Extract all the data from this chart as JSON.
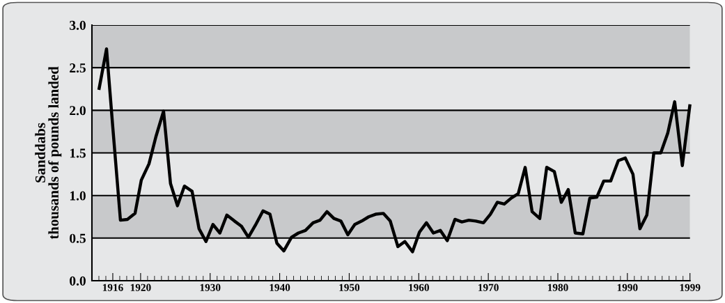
{
  "chart_data": {
    "type": "line",
    "ylabel": "Sanddabs\nthousands of pounds landed",
    "x": [
      1914.0,
      1915.1,
      1916.0,
      1917.1,
      1918.1,
      1919.2,
      1920.1,
      1921.2,
      1922.2,
      1923.3,
      1924.3,
      1925.3,
      1926.3,
      1927.4,
      1928.4,
      1929.4,
      1930.4,
      1931.4,
      1932.4,
      1933.5,
      1934.5,
      1935.5,
      1936.5,
      1937.6,
      1938.6,
      1939.6,
      1940.6,
      1941.7,
      1942.7,
      1943.7,
      1944.8,
      1945.8,
      1946.8,
      1947.8,
      1948.8,
      1949.8,
      1950.8,
      1951.8,
      1952.8,
      1953.8,
      1954.9,
      1955.9,
      1957.0,
      1958.0,
      1959.1,
      1960.1,
      1961.1,
      1962.1,
      1963.1,
      1964.1,
      1965.2,
      1966.2,
      1967.2,
      1968.2,
      1969.3,
      1970.3,
      1971.3,
      1972.3,
      1973.3,
      1974.3,
      1975.3,
      1976.3,
      1977.4,
      1978.4,
      1979.5,
      1980.5,
      1981.5,
      1982.5,
      1983.6,
      1984.6,
      1985.6,
      1986.6,
      1987.6,
      1988.7,
      1989.7,
      1990.8,
      1991.8,
      1992.8,
      1993.8,
      1994.8,
      1995.8,
      1996.8,
      1997.9,
      1999.0
    ],
    "series": [
      {
        "color": "#000000",
        "values": [
          2.24,
          2.72,
          1.8,
          0.71,
          0.72,
          0.79,
          1.18,
          1.37,
          1.69,
          1.99,
          1.14,
          0.88,
          1.11,
          1.05,
          0.61,
          0.46,
          0.66,
          0.56,
          0.77,
          0.7,
          0.64,
          0.51,
          0.65,
          0.82,
          0.78,
          0.44,
          0.35,
          0.51,
          0.56,
          0.59,
          0.68,
          0.71,
          0.81,
          0.73,
          0.7,
          0.54,
          0.66,
          0.7,
          0.75,
          0.78,
          0.79,
          0.7,
          0.4,
          0.46,
          0.34,
          0.57,
          0.68,
          0.56,
          0.59,
          0.47,
          0.72,
          0.69,
          0.71,
          0.7,
          0.68,
          0.78,
          0.92,
          0.9,
          0.97,
          1.02,
          1.33,
          0.81,
          0.73,
          1.33,
          1.28,
          0.92,
          1.07,
          0.56,
          0.55,
          0.97,
          0.98,
          1.17,
          1.17,
          1.41,
          1.44,
          1.25,
          0.61,
          0.77,
          1.5,
          1.5,
          1.73,
          2.1,
          1.35,
          2.07
        ]
      }
    ],
    "xlim": [
      1913,
      1999
    ],
    "xticks": [
      {
        "value": 1914,
        "label": null
      },
      {
        "value": 1915,
        "label": null
      },
      1916,
      {
        "value": 1917,
        "label": null
      },
      {
        "value": 1918,
        "label": null
      },
      {
        "value": 1919,
        "label": null
      },
      1920,
      {
        "value": 1921,
        "label": null
      },
      {
        "value": 1922,
        "label": null
      },
      {
        "value": 1923,
        "label": null
      },
      {
        "value": 1924,
        "label": null
      },
      {
        "value": 1925,
        "label": null
      },
      {
        "value": 1926,
        "label": null
      },
      {
        "value": 1927,
        "label": null
      },
      {
        "value": 1928,
        "label": null
      },
      {
        "value": 1929,
        "label": null
      },
      1930,
      {
        "value": 1931,
        "label": null
      },
      {
        "value": 1932,
        "label": null
      },
      {
        "value": 1933,
        "label": null
      },
      {
        "value": 1934,
        "label": null
      },
      {
        "value": 1935,
        "label": null
      },
      {
        "value": 1936,
        "label": null
      },
      {
        "value": 1937,
        "label": null
      },
      {
        "value": 1938,
        "label": null
      },
      {
        "value": 1939,
        "label": null
      },
      1940,
      {
        "value": 1941,
        "label": null
      },
      {
        "value": 1942,
        "label": null
      },
      {
        "value": 1943,
        "label": null
      },
      {
        "value": 1944,
        "label": null
      },
      {
        "value": 1945,
        "label": null
      },
      {
        "value": 1946,
        "label": null
      },
      {
        "value": 1947,
        "label": null
      },
      {
        "value": 1948,
        "label": null
      },
      {
        "value": 1949,
        "label": null
      },
      1950,
      {
        "value": 1951,
        "label": null
      },
      {
        "value": 1952,
        "label": null
      },
      {
        "value": 1953,
        "label": null
      },
      {
        "value": 1954,
        "label": null
      },
      {
        "value": 1955,
        "label": null
      },
      {
        "value": 1956,
        "label": null
      },
      {
        "value": 1957,
        "label": null
      },
      {
        "value": 1958,
        "label": null
      },
      {
        "value": 1959,
        "label": null
      },
      1960,
      {
        "value": 1961,
        "label": null
      },
      {
        "value": 1962,
        "label": null
      },
      {
        "value": 1963,
        "label": null
      },
      {
        "value": 1964,
        "label": null
      },
      {
        "value": 1965,
        "label": null
      },
      {
        "value": 1966,
        "label": null
      },
      {
        "value": 1967,
        "label": null
      },
      {
        "value": 1968,
        "label": null
      },
      {
        "value": 1969,
        "label": null
      },
      1970,
      {
        "value": 1971,
        "label": null
      },
      {
        "value": 1972,
        "label": null
      },
      {
        "value": 1973,
        "label": null
      },
      {
        "value": 1974,
        "label": null
      },
      {
        "value": 1975,
        "label": null
      },
      {
        "value": 1976,
        "label": null
      },
      {
        "value": 1977,
        "label": null
      },
      {
        "value": 1978,
        "label": null
      },
      {
        "value": 1979,
        "label": null
      },
      1980,
      {
        "value": 1981,
        "label": null
      },
      {
        "value": 1982,
        "label": null
      },
      {
        "value": 1983,
        "label": null
      },
      {
        "value": 1984,
        "label": null
      },
      {
        "value": 1985,
        "label": null
      },
      {
        "value": 1986,
        "label": null
      },
      {
        "value": 1987,
        "label": null
      },
      {
        "value": 1988,
        "label": null
      },
      {
        "value": 1989,
        "label": null
      },
      1990,
      {
        "value": 1991,
        "label": null
      },
      {
        "value": 1992,
        "label": null
      },
      {
        "value": 1993,
        "label": null
      },
      {
        "value": 1994,
        "label": null
      },
      {
        "value": 1995,
        "label": null
      },
      {
        "value": 1996,
        "label": null
      },
      {
        "value": 1997,
        "label": null
      },
      {
        "value": 1998,
        "label": null
      },
      1999
    ],
    "ylim": [
      0,
      3
    ],
    "yticks": [
      {
        "value": 0,
        "label": "0.0"
      },
      0.5,
      {
        "value": 1,
        "label": "1.0"
      },
      1.5,
      {
        "value": 2,
        "label": "2.0"
      },
      2.5,
      {
        "value": 3,
        "label": "3.0"
      }
    ],
    "bands": [
      {
        "axis": "y",
        "from": 0.5,
        "to": 1.0,
        "color": "#c8c9cb"
      },
      {
        "axis": "y",
        "from": 1.5,
        "to": 2.0,
        "color": "#c8c9cb"
      },
      {
        "axis": "y",
        "from": 2.5,
        "to": 3.0,
        "color": "#c8c9cb"
      }
    ],
    "grid": "y",
    "line_style": "solid",
    "marker": "none"
  }
}
